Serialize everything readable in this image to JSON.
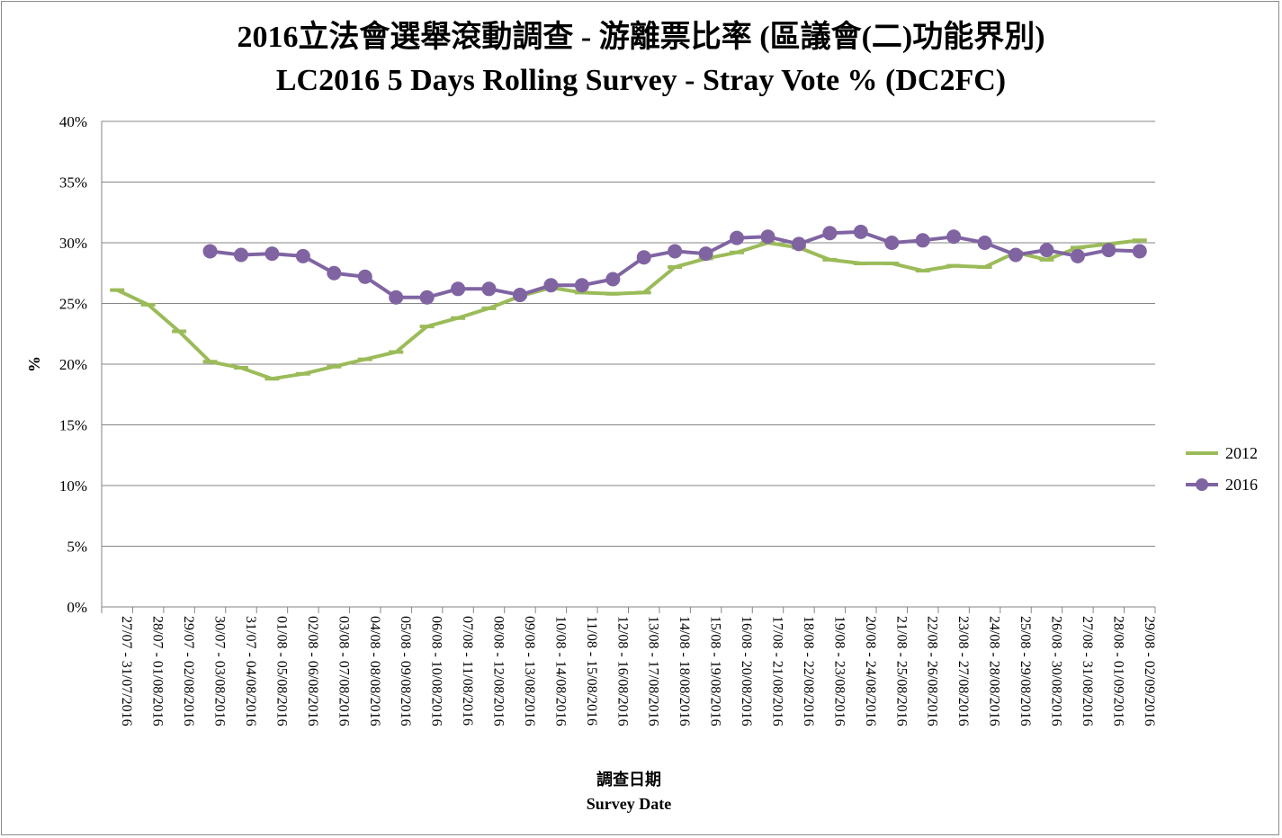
{
  "chart_data": {
    "type": "line",
    "title": "2016立法會選舉滾動調查 - 游離票比率 (區議會(二)功能界別)",
    "subtitle": "LC2016 5 Days Rolling Survey - Stray Vote % (DC2FC)",
    "xlabel": "調查日期",
    "xlabel_en": "Survey Date",
    "ylabel": "%",
    "ylim": [
      0,
      40
    ],
    "yticks": [
      "0%",
      "5%",
      "10%",
      "15%",
      "20%",
      "25%",
      "30%",
      "35%",
      "40%"
    ],
    "grid": "horizontal",
    "legend_position": "right",
    "categories": [
      "27/07 - 31/07/2016",
      "28/07 - 01/08/2016",
      "29/07 - 02/08/2016",
      "30/07 - 03/08/2016",
      "31/07 - 04/08/2016",
      "01/08 - 05/08/2016",
      "02/08 - 06/08/2016",
      "03/08 - 07/08/2016",
      "04/08 - 08/08/2016",
      "05/08 - 09/08/2016",
      "06/08 - 10/08/2016",
      "07/08 - 11/08/2016",
      "08/08 - 12/08/2016",
      "09/08 - 13/08/2016",
      "10/08 - 14/08/2016",
      "11/08 - 15/08/2016",
      "12/08 - 16/08/2016",
      "13/08 - 17/08/2016",
      "14/08 - 18/08/2016",
      "15/08 - 19/08/2016",
      "16/08 - 20/08/2016",
      "17/08 - 21/08/2016",
      "18/08 - 22/08/2016",
      "19/08 - 23/08/2016",
      "20/08 - 24/08/2016",
      "21/08 - 25/08/2016",
      "22/08 - 26/08/2016",
      "23/08 - 27/08/2016",
      "24/08 - 28/08/2016",
      "25/08 - 29/08/2016",
      "26/08 - 30/08/2016",
      "27/08 - 31/08/2016",
      "28/08 - 01/09/2016",
      "29/08 - 02/09/2016"
    ],
    "series": [
      {
        "name": "2012",
        "color": "#9bbb59",
        "marker": "dash",
        "values": [
          26.1,
          24.9,
          22.7,
          20.2,
          19.7,
          18.8,
          19.2,
          19.8,
          20.4,
          21.0,
          23.1,
          23.8,
          24.6,
          25.6,
          26.3,
          25.9,
          25.8,
          25.9,
          28.0,
          28.7,
          29.2,
          30.0,
          29.6,
          28.6,
          28.3,
          28.3,
          27.7,
          28.1,
          28.0,
          29.2,
          28.6,
          29.6,
          29.9,
          30.2
        ]
      },
      {
        "name": "2016",
        "color": "#8064a2",
        "marker": "circle",
        "values": [
          null,
          null,
          null,
          29.3,
          29.0,
          29.1,
          28.9,
          27.5,
          27.2,
          25.5,
          25.5,
          26.2,
          26.2,
          25.7,
          26.5,
          26.5,
          27.0,
          28.8,
          29.3,
          29.1,
          30.4,
          30.5,
          29.9,
          30.8,
          30.9,
          30.0,
          30.2,
          30.5,
          30.0,
          29.0,
          29.4,
          28.9,
          29.4,
          29.3
        ]
      }
    ]
  }
}
